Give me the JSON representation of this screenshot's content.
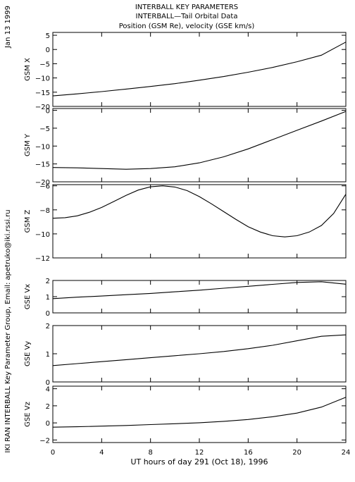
{
  "header": {
    "title_line1": "INTERBALL KEY PARAMETERS",
    "title_line2": "INTERBALL—Tail Orbital Data",
    "title_line3": "Position (GSM Re), velocity (GSE km/s)"
  },
  "side": {
    "date": "Jan 13 1999",
    "credit": "IKI RAN INTERBALL Key Parameter Group, Email: apetruko@iki.rssi.ru"
  },
  "chart_data": {
    "type": "line",
    "x_axis": {
      "label": "UT hours of day 291 (Oct 18), 1996",
      "range": [
        0,
        24
      ],
      "ticks": [
        0,
        4,
        8,
        12,
        16,
        20,
        24
      ],
      "tick_labels": [
        "0",
        "4",
        "8",
        "12",
        "16",
        "20",
        "24"
      ]
    },
    "panels": [
      {
        "ylabel": "GSM X",
        "ylim": [
          -20,
          6
        ],
        "yticks": [
          5,
          0,
          -5,
          -10,
          -15,
          -20
        ],
        "ytick_labels": [
          "5",
          "0",
          "−5",
          "−10",
          "−15",
          "−20"
        ],
        "x": [
          0,
          2,
          4,
          6,
          8,
          10,
          12,
          14,
          16,
          18,
          20,
          22,
          24
        ],
        "y": [
          -16.3,
          -15.6,
          -14.8,
          -13.9,
          -13.0,
          -12.0,
          -10.8,
          -9.5,
          -8.0,
          -6.3,
          -4.3,
          -2.0,
          2.6
        ]
      },
      {
        "ylabel": "GSM Y",
        "ylim": [
          -20,
          0.5
        ],
        "yticks": [
          0,
          -5,
          -10,
          -15,
          -20
        ],
        "ytick_labels": [
          "0",
          "−5",
          "−10",
          "−15",
          "−20"
        ],
        "x": [
          0,
          2,
          4,
          6,
          8,
          10,
          12,
          14,
          16,
          18,
          20,
          22,
          24
        ],
        "y": [
          -16.0,
          -16.1,
          -16.3,
          -16.5,
          -16.3,
          -15.8,
          -14.7,
          -13.0,
          -10.8,
          -8.2,
          -5.6,
          -3.0,
          -0.3
        ]
      },
      {
        "ylabel": "GSM Z",
        "ylim": [
          -12,
          -5.9
        ],
        "yticks": [
          -6,
          -8,
          -10,
          -12
        ],
        "ytick_labels": [
          "−6",
          "−8",
          "−10",
          "−12"
        ],
        "x": [
          0,
          1,
          2,
          3,
          4,
          5,
          6,
          7,
          8,
          9,
          10,
          11,
          12,
          13,
          14,
          15,
          16,
          17,
          18,
          19,
          20,
          21,
          22,
          23,
          24
        ],
        "y": [
          -8.7,
          -8.65,
          -8.5,
          -8.2,
          -7.8,
          -7.3,
          -6.8,
          -6.35,
          -6.08,
          -6.0,
          -6.1,
          -6.4,
          -6.9,
          -7.5,
          -8.15,
          -8.8,
          -9.4,
          -9.85,
          -10.15,
          -10.25,
          -10.15,
          -9.85,
          -9.3,
          -8.3,
          -6.7
        ]
      },
      {
        "ylabel": "GSE Vx",
        "ylim": [
          0,
          2
        ],
        "yticks": [
          0,
          1,
          2
        ],
        "ytick_labels": [
          "0",
          "1",
          "2"
        ],
        "x": [
          0,
          2,
          4,
          6,
          8,
          10,
          12,
          14,
          16,
          18,
          20,
          22,
          24
        ],
        "y": [
          0.88,
          0.97,
          1.04,
          1.12,
          1.2,
          1.3,
          1.4,
          1.52,
          1.64,
          1.76,
          1.88,
          1.92,
          1.77
        ]
      },
      {
        "ylabel": "GSE Vy",
        "ylim": [
          0,
          2
        ],
        "yticks": [
          0,
          1,
          2
        ],
        "ytick_labels": [
          "0",
          "1",
          "2"
        ],
        "x": [
          0,
          2,
          4,
          6,
          8,
          10,
          12,
          14,
          16,
          18,
          20,
          22,
          24
        ],
        "y": [
          0.58,
          0.65,
          0.72,
          0.79,
          0.86,
          0.93,
          1.0,
          1.08,
          1.18,
          1.3,
          1.46,
          1.62,
          1.67
        ]
      },
      {
        "ylabel": "GSE Vz",
        "ylim": [
          -2.3,
          4.3
        ],
        "yticks": [
          4,
          2,
          0,
          -2
        ],
        "ytick_labels": [
          "4",
          "2",
          "0",
          "−2"
        ],
        "x": [
          0,
          2,
          4,
          6,
          8,
          10,
          12,
          14,
          16,
          18,
          20,
          22,
          24
        ],
        "y": [
          -0.5,
          -0.45,
          -0.38,
          -0.3,
          -0.2,
          -0.1,
          0.02,
          0.18,
          0.4,
          0.72,
          1.15,
          1.85,
          3.0
        ]
      }
    ]
  }
}
